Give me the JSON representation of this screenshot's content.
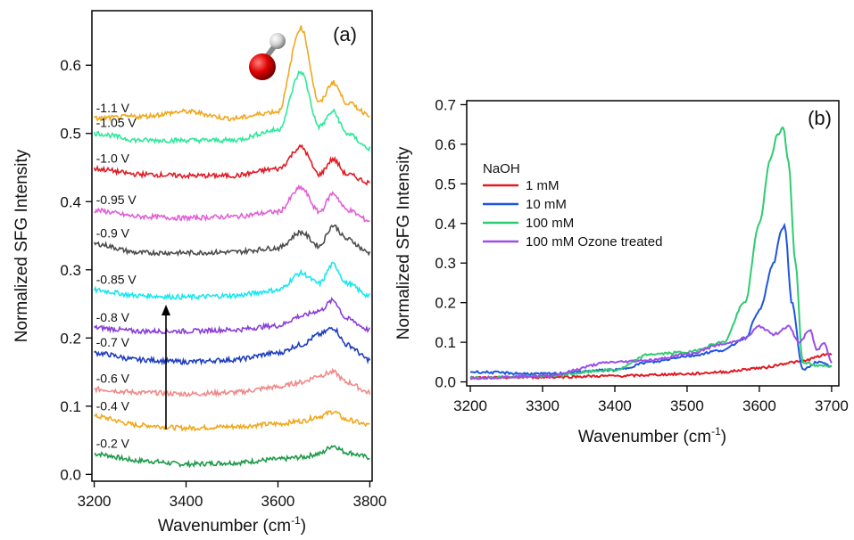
{
  "chart_data": [
    {
      "panel": "(a)",
      "type": "line",
      "xlabel": "Wavenumber (cm",
      "xlabel_sup": "-1",
      "xlabel_close": ")",
      "ylabel": "Normalized SFG Intensity",
      "xlim": [
        3195,
        3805
      ],
      "ylim": [
        -0.01,
        0.68
      ],
      "xticks": [
        3200,
        3400,
        3600,
        3800
      ],
      "yticks": [
        0.0,
        0.1,
        0.2,
        0.3,
        0.4,
        0.5,
        0.6
      ],
      "ytick_labels": [
        "0.0",
        "0.1",
        "0.2",
        "0.3",
        "0.4",
        "0.5",
        "0.6"
      ],
      "grid": false,
      "annotations": [
        "arrow pointing up from -0.4 V to -0.8 V",
        "water/hydroxide molecule illustration"
      ],
      "series": [
        {
          "label": "-0.2 V",
          "color": "#1e9a4a",
          "x": [
            3200,
            3300,
            3400,
            3500,
            3600,
            3650,
            3690,
            3720,
            3750,
            3800
          ],
          "y": [
            0.03,
            0.02,
            0.015,
            0.017,
            0.022,
            0.025,
            0.03,
            0.042,
            0.032,
            0.025
          ]
        },
        {
          "label": "-0.4 V",
          "color": "#f0a81e",
          "x": [
            3200,
            3300,
            3400,
            3500,
            3600,
            3650,
            3690,
            3720,
            3750,
            3800
          ],
          "y": [
            0.085,
            0.072,
            0.068,
            0.07,
            0.074,
            0.078,
            0.085,
            0.092,
            0.08,
            0.072
          ]
        },
        {
          "label": "-0.6 V",
          "color": "#f08a8a",
          "x": [
            3200,
            3300,
            3400,
            3500,
            3600,
            3650,
            3690,
            3720,
            3750,
            3800
          ],
          "y": [
            0.125,
            0.12,
            0.118,
            0.12,
            0.128,
            0.135,
            0.145,
            0.15,
            0.135,
            0.12
          ]
        },
        {
          "label": "-0.7 V",
          "color": "#1f3fbf",
          "x": [
            3200,
            3300,
            3400,
            3500,
            3600,
            3650,
            3690,
            3720,
            3750,
            3800
          ],
          "y": [
            0.178,
            0.168,
            0.165,
            0.168,
            0.178,
            0.19,
            0.205,
            0.215,
            0.19,
            0.168
          ]
        },
        {
          "label": "-0.8 V",
          "color": "#8a3fd6",
          "x": [
            3200,
            3300,
            3400,
            3500,
            3600,
            3650,
            3690,
            3720,
            3750,
            3800
          ],
          "y": [
            0.215,
            0.21,
            0.21,
            0.212,
            0.218,
            0.232,
            0.24,
            0.255,
            0.228,
            0.212
          ]
        },
        {
          "label": "-0.85 V",
          "color": "#19e6f0",
          "x": [
            3200,
            3300,
            3400,
            3500,
            3600,
            3650,
            3690,
            3720,
            3750,
            3800
          ],
          "y": [
            0.27,
            0.262,
            0.26,
            0.262,
            0.27,
            0.295,
            0.28,
            0.308,
            0.28,
            0.262
          ]
        },
        {
          "label": "-0.9 V",
          "color": "#4d4d4d",
          "x": [
            3200,
            3300,
            3400,
            3500,
            3600,
            3650,
            3690,
            3720,
            3750,
            3800
          ],
          "y": [
            0.338,
            0.325,
            0.325,
            0.326,
            0.332,
            0.355,
            0.335,
            0.365,
            0.345,
            0.325
          ]
        },
        {
          "label": "-0.95 V",
          "color": "#e060d6",
          "x": [
            3200,
            3300,
            3400,
            3500,
            3600,
            3650,
            3690,
            3720,
            3750,
            3800
          ],
          "y": [
            0.387,
            0.378,
            0.376,
            0.378,
            0.385,
            0.42,
            0.385,
            0.412,
            0.388,
            0.372
          ]
        },
        {
          "label": "-1.0 V",
          "color": "#e01b24",
          "x": [
            3200,
            3300,
            3400,
            3500,
            3600,
            3650,
            3690,
            3720,
            3750,
            3800
          ],
          "y": [
            0.448,
            0.44,
            0.438,
            0.438,
            0.448,
            0.48,
            0.44,
            0.462,
            0.44,
            0.428
          ]
        },
        {
          "label": "-1.05 V",
          "color": "#2ee89a",
          "x": [
            3200,
            3300,
            3400,
            3500,
            3600,
            3650,
            3690,
            3720,
            3750,
            3800
          ],
          "y": [
            0.5,
            0.49,
            0.49,
            0.49,
            0.505,
            0.59,
            0.51,
            0.532,
            0.5,
            0.478
          ]
        },
        {
          "label": "-1.1 V",
          "color": "#f0a81e",
          "x": [
            3200,
            3300,
            3400,
            3500,
            3600,
            3650,
            3690,
            3720,
            3750,
            3800
          ],
          "y": [
            0.522,
            0.525,
            0.532,
            0.522,
            0.532,
            0.655,
            0.545,
            0.575,
            0.545,
            0.528
          ]
        }
      ]
    },
    {
      "panel": "(b)",
      "type": "line",
      "xlabel": "Wavenumber (cm",
      "xlabel_sup": "-1",
      "xlabel_close": ")",
      "ylabel": "Normalized SFG Intensity",
      "xlim": [
        3195,
        3710
      ],
      "ylim": [
        -0.01,
        0.71
      ],
      "xticks": [
        3200,
        3300,
        3400,
        3500,
        3600,
        3700
      ],
      "yticks": [
        0.0,
        0.1,
        0.2,
        0.3,
        0.4,
        0.5,
        0.6,
        0.7
      ],
      "ytick_labels": [
        "0.0",
        "0.1",
        "0.2",
        "0.3",
        "0.4",
        "0.5",
        "0.6",
        "0.7"
      ],
      "grid": false,
      "legend_title": "NaOH",
      "legend_position": "top-left",
      "series": [
        {
          "name": "1 mM",
          "color": "#e01b24",
          "x": [
            3200,
            3300,
            3400,
            3500,
            3550,
            3600,
            3650,
            3700
          ],
          "y": [
            0.01,
            0.012,
            0.015,
            0.02,
            0.025,
            0.035,
            0.05,
            0.07
          ]
        },
        {
          "name": "10 mM",
          "color": "#1f55e0",
          "x": [
            3200,
            3300,
            3400,
            3450,
            3500,
            3550,
            3580,
            3600,
            3620,
            3630,
            3635,
            3645,
            3660,
            3680,
            3700
          ],
          "y": [
            0.025,
            0.02,
            0.03,
            0.05,
            0.065,
            0.08,
            0.11,
            0.18,
            0.3,
            0.38,
            0.395,
            0.2,
            0.03,
            0.05,
            0.04
          ]
        },
        {
          "name": "100 mM",
          "color": "#2ecc71",
          "x": [
            3200,
            3300,
            3400,
            3450,
            3500,
            3550,
            3580,
            3600,
            3615,
            3625,
            3633,
            3640,
            3650,
            3660,
            3680,
            3700
          ],
          "y": [
            0.01,
            0.015,
            0.03,
            0.07,
            0.075,
            0.1,
            0.2,
            0.4,
            0.56,
            0.625,
            0.642,
            0.56,
            0.3,
            0.05,
            0.04,
            0.04
          ]
        },
        {
          "name": "100 mM Ozone treated",
          "color": "#9a4fe6",
          "x": [
            3200,
            3300,
            3400,
            3450,
            3500,
            3550,
            3580,
            3600,
            3620,
            3640,
            3655,
            3670,
            3680,
            3690,
            3700
          ],
          "y": [
            0.01,
            0.015,
            0.05,
            0.055,
            0.07,
            0.095,
            0.11,
            0.14,
            0.12,
            0.14,
            0.1,
            0.13,
            0.08,
            0.1,
            0.05
          ]
        }
      ]
    }
  ]
}
